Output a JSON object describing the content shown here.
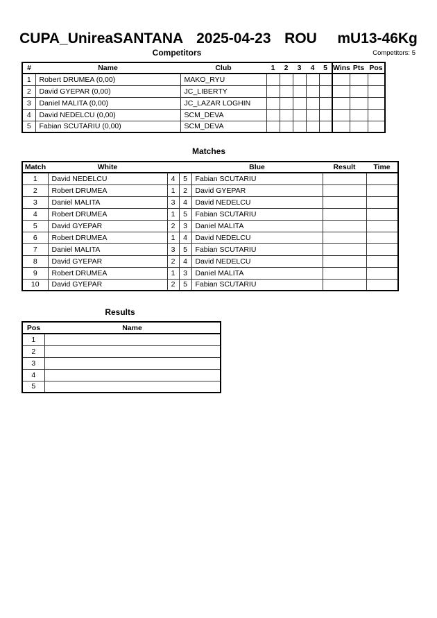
{
  "title": "CUPA_UnireaSANTANA  2025-04-23  ROU   mU13-46Kg",
  "competitors": {
    "heading": "Competitors",
    "count_label": "Competitors: 5",
    "headers": {
      "num": "#",
      "name": "Name",
      "club": "Club",
      "c1": "1",
      "c2": "2",
      "c3": "3",
      "c4": "4",
      "c5": "5",
      "wins": "Wins",
      "pts": "Pts",
      "pos": "Pos"
    },
    "rows": [
      {
        "num": "1",
        "name": "Robert DRUMEA  (0,00)",
        "club": "MAKO_RYU"
      },
      {
        "num": "2",
        "name": "David GYEPAR  (0,00)",
        "club": "JC_LIBERTY"
      },
      {
        "num": "3",
        "name": "Daniel MALITA  (0,00)",
        "club": "JC_LAZAR LOGHIN"
      },
      {
        "num": "4",
        "name": "David NEDELCU  (0,00)",
        "club": "SCM_DEVA"
      },
      {
        "num": "5",
        "name": "Fabian SCUTARIU  (0,00)",
        "club": "SCM_DEVA"
      }
    ]
  },
  "matches": {
    "heading": "Matches",
    "headers": {
      "match": "Match",
      "white": "White",
      "blue": "Blue",
      "result": "Result",
      "time": "Time"
    },
    "rows": [
      {
        "match": "1",
        "white": "David NEDELCU",
        "wn": "4",
        "bn": "5",
        "blue": "Fabian SCUTARIU"
      },
      {
        "match": "2",
        "white": "Robert DRUMEA",
        "wn": "1",
        "bn": "2",
        "blue": "David GYEPAR"
      },
      {
        "match": "3",
        "white": "Daniel MALITA",
        "wn": "3",
        "bn": "4",
        "blue": "David NEDELCU"
      },
      {
        "match": "4",
        "white": "Robert DRUMEA",
        "wn": "1",
        "bn": "5",
        "blue": "Fabian SCUTARIU"
      },
      {
        "match": "5",
        "white": "David GYEPAR",
        "wn": "2",
        "bn": "3",
        "blue": "Daniel MALITA"
      },
      {
        "match": "6",
        "white": "Robert DRUMEA",
        "wn": "1",
        "bn": "4",
        "blue": "David NEDELCU"
      },
      {
        "match": "7",
        "white": "Daniel MALITA",
        "wn": "3",
        "bn": "5",
        "blue": "Fabian SCUTARIU"
      },
      {
        "match": "8",
        "white": "David GYEPAR",
        "wn": "2",
        "bn": "4",
        "blue": "David NEDELCU"
      },
      {
        "match": "9",
        "white": "Robert DRUMEA",
        "wn": "1",
        "bn": "3",
        "blue": "Daniel MALITA"
      },
      {
        "match": "10",
        "white": "David GYEPAR",
        "wn": "2",
        "bn": "5",
        "blue": "Fabian SCUTARIU"
      }
    ]
  },
  "results": {
    "heading": "Results",
    "headers": {
      "pos": "Pos",
      "name": "Name"
    },
    "rows": [
      {
        "pos": "1"
      },
      {
        "pos": "2"
      },
      {
        "pos": "3"
      },
      {
        "pos": "4"
      },
      {
        "pos": "5"
      }
    ]
  }
}
